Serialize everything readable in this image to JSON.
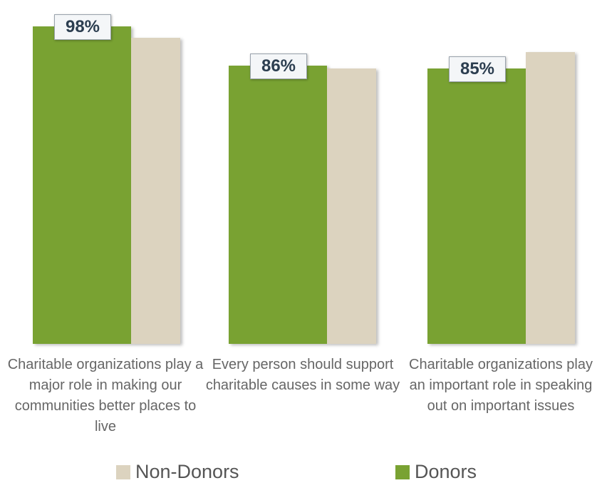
{
  "chart_data": {
    "type": "bar",
    "categories": [
      "Charitable organizations play a major role in making our communities better places to live",
      "Every person should support charitable causes in some way",
      "Charitable organizations play an important role in speaking out on important issues"
    ],
    "series": [
      {
        "name": "Non-Donors",
        "color": "#dcd3bf",
        "values": [
          94.5,
          85,
          90
        ]
      },
      {
        "name": "Donors",
        "color": "#79a232",
        "values": [
          98,
          86,
          85
        ],
        "value_labels": [
          "98%",
          "86%",
          "85%"
        ]
      }
    ],
    "ylim": [
      0,
      100
    ]
  }
}
